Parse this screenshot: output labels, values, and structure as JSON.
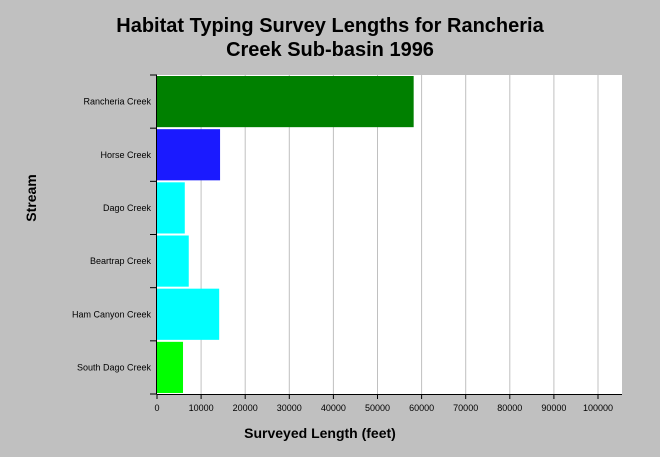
{
  "chart_data": {
    "type": "bar",
    "orientation": "horizontal",
    "title": [
      "Habitat Typing Survey Lengths for Rancheria",
      "Creek Sub-basin 1996"
    ],
    "xlabel": "Surveyed Length (feet)",
    "ylabel": "Stream",
    "xlim": [
      0,
      100000
    ],
    "xticks": [
      0,
      10000,
      20000,
      30000,
      40000,
      50000,
      60000,
      70000,
      80000,
      90000,
      100000
    ],
    "categories": [
      "Rancheria Creek",
      "Horse Creek",
      "Dago Creek",
      "Beartrap Creek",
      "Ham Canyon Creek",
      "South Dago Creek"
    ],
    "values": [
      58200,
      14300,
      6300,
      7200,
      14100,
      5900
    ],
    "colors": [
      "#008000",
      "#1a1aff",
      "#00ffff",
      "#00ffff",
      "#00ffff",
      "#00ff00"
    ],
    "grid": "vertical",
    "legend": "none"
  }
}
